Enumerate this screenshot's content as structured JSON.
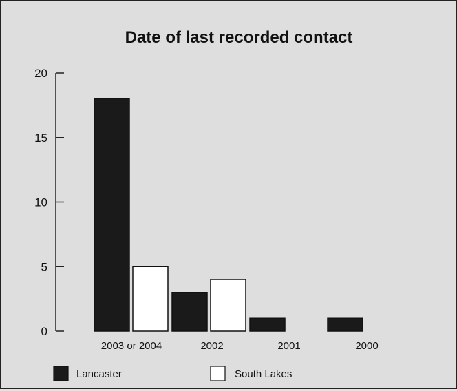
{
  "chart_data": {
    "type": "bar",
    "title": "Date of last recorded contact",
    "categories": [
      "2003 or 2004",
      "2002",
      "2001",
      "2000"
    ],
    "series": [
      {
        "name": "Lancaster",
        "values": [
          18,
          3,
          1,
          1
        ],
        "color": "#1a1a1a"
      },
      {
        "name": "South Lakes",
        "values": [
          5,
          4,
          0,
          0
        ],
        "color": "#ffffff"
      }
    ],
    "yticks": [
      "0",
      "5",
      "10",
      "15",
      "20"
    ],
    "ylim": [
      0,
      20
    ],
    "grid": false,
    "legend": "bottom",
    "xlabel": "",
    "ylabel": ""
  }
}
